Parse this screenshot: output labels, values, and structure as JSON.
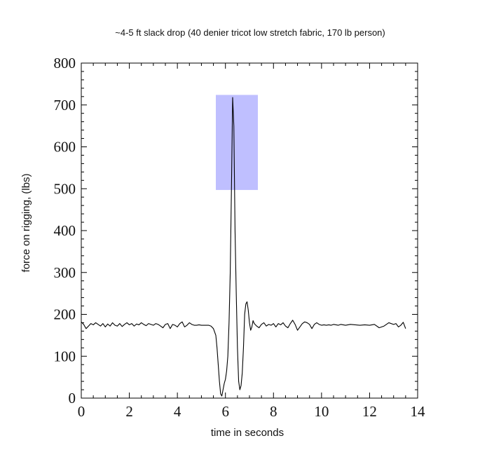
{
  "chart_data": {
    "type": "line",
    "title": "~4-5 ft slack drop (40 denier tricot low stretch fabric, 170 lb person)",
    "xlabel": "time in seconds",
    "ylabel": "force on rigging, (lbs)",
    "xlim": [
      0,
      14
    ],
    "ylim": [
      0,
      800
    ],
    "xticks": [
      0,
      2,
      4,
      6,
      8,
      10,
      12,
      14
    ],
    "yticks": [
      0,
      100,
      200,
      300,
      400,
      500,
      600,
      700,
      800
    ],
    "xtick_labels": [
      "0",
      "2",
      "4",
      "6",
      "8",
      "10",
      "12",
      "14"
    ],
    "ytick_labels": [
      "0",
      "100",
      "200",
      "300",
      "400",
      "500",
      "600",
      "700",
      "800"
    ],
    "grid": false,
    "legend": "none",
    "highlight_region": {
      "x": [
        5.6,
        7.35
      ],
      "y": [
        497,
        724
      ],
      "color": "#bfbfff"
    },
    "line_color": "#000000",
    "series": [
      {
        "x": [
          0,
          0.1,
          0.2,
          0.3,
          0.4,
          0.5,
          0.6,
          0.7,
          0.8,
          0.9,
          1.0,
          1.1,
          1.2,
          1.3,
          1.4,
          1.5,
          1.6,
          1.7,
          1.8,
          1.9,
          2.0,
          2.1,
          2.2,
          2.3,
          2.4,
          2.5,
          2.6,
          2.7,
          2.8,
          2.9,
          3.0,
          3.1,
          3.2,
          3.3,
          3.4,
          3.5,
          3.6,
          3.7,
          3.8,
          3.9,
          4.0,
          4.1,
          4.2,
          4.3,
          4.4,
          4.5,
          4.6,
          4.7,
          4.8,
          4.9,
          5.0,
          5.1,
          5.2,
          5.3,
          5.4,
          5.5,
          5.6,
          5.65,
          5.7,
          5.75,
          5.8,
          5.85,
          5.9,
          5.95,
          6.0,
          6.05,
          6.1,
          6.15,
          6.2,
          6.25,
          6.3,
          6.35,
          6.4,
          6.45,
          6.5,
          6.55,
          6.6,
          6.65,
          6.7,
          6.75,
          6.8,
          6.85,
          6.9,
          6.95,
          7.0,
          7.05,
          7.1,
          7.15,
          7.2,
          7.3,
          7.4,
          7.5,
          7.6,
          7.7,
          7.8,
          7.9,
          8.0,
          8.1,
          8.2,
          8.3,
          8.4,
          8.5,
          8.6,
          8.7,
          8.8,
          8.9,
          9.0,
          9.1,
          9.2,
          9.3,
          9.4,
          9.5,
          9.6,
          9.7,
          9.8,
          9.9,
          10.0,
          10.1,
          10.2,
          10.3,
          10.4,
          10.5,
          10.6,
          10.7,
          10.8,
          10.9,
          11.0,
          11.2,
          11.4,
          11.6,
          11.8,
          12.0,
          12.2,
          12.4,
          12.6,
          12.8,
          13.0,
          13.1,
          13.2,
          13.3,
          13.4,
          13.5
        ],
        "y": [
          182,
          176,
          166,
          172,
          178,
          175,
          180,
          176,
          172,
          178,
          170,
          177,
          172,
          180,
          174,
          172,
          178,
          171,
          176,
          180,
          175,
          178,
          172,
          177,
          175,
          180,
          176,
          173,
          178,
          176,
          174,
          178,
          176,
          172,
          168,
          176,
          178,
          166,
          176,
          174,
          170,
          178,
          182,
          170,
          174,
          180,
          176,
          174,
          174,
          175,
          174,
          174,
          174,
          174,
          172,
          166,
          150,
          120,
          80,
          40,
          10,
          5,
          20,
          35,
          45,
          65,
          100,
          180,
          300,
          500,
          718,
          650,
          400,
          250,
          120,
          40,
          20,
          30,
          60,
          120,
          200,
          225,
          230,
          210,
          180,
          162,
          170,
          185,
          178,
          172,
          168,
          176,
          180,
          172,
          176,
          174,
          178,
          170,
          178,
          175,
          180,
          172,
          168,
          178,
          186,
          176,
          162,
          170,
          178,
          182,
          180,
          176,
          166,
          176,
          180,
          176,
          174,
          175,
          174,
          175,
          174,
          176,
          175,
          174,
          176,
          175,
          174,
          176,
          175,
          174,
          175,
          174,
          176,
          168,
          172,
          180,
          176,
          178,
          170,
          174,
          181,
          166
        ]
      }
    ]
  }
}
